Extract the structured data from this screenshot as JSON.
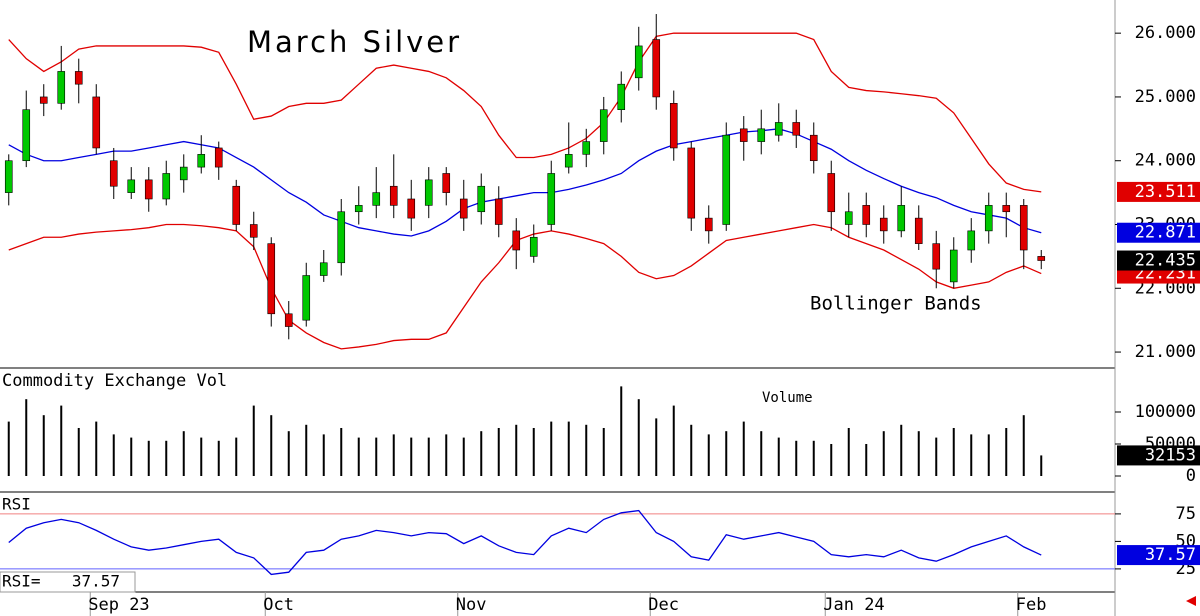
{
  "chart_data": [
    {
      "type": "candlestick",
      "title": "March Silver",
      "annotation": "Bollinger Bands",
      "categories": [
        null,
        null,
        null,
        null,
        null,
        "Sep 23",
        null,
        null,
        null,
        null,
        null,
        null,
        null,
        null,
        null,
        "Oct",
        null,
        null,
        null,
        null,
        null,
        null,
        null,
        null,
        null,
        null,
        "Nov",
        null,
        null,
        null,
        null,
        null,
        null,
        null,
        null,
        null,
        null,
        "Dec",
        null,
        null,
        null,
        null,
        null,
        null,
        null,
        null,
        null,
        "Jan 24",
        null,
        null,
        null,
        null,
        null,
        null,
        null,
        null,
        null,
        null,
        "Feb",
        null
      ],
      "open": [
        23.5,
        24.0,
        25.0,
        24.9,
        25.4,
        25.0,
        24.0,
        23.5,
        23.7,
        23.4,
        23.7,
        23.9,
        24.2,
        23.6,
        23.0,
        22.7,
        21.6,
        21.5,
        22.2,
        22.4,
        23.2,
        23.3,
        23.6,
        23.4,
        23.3,
        23.8,
        23.4,
        23.2,
        23.4,
        22.9,
        22.5,
        23.0,
        23.9,
        24.1,
        24.3,
        24.8,
        25.3,
        25.9,
        24.9,
        24.2,
        23.1,
        23.0,
        24.5,
        24.3,
        24.4,
        24.6,
        24.4,
        23.8,
        23.0,
        23.3,
        23.1,
        22.9,
        23.1,
        22.7,
        22.1,
        22.6,
        22.9,
        23.3,
        23.3,
        22.5
      ],
      "high": [
        24.1,
        25.1,
        25.2,
        25.8,
        25.6,
        25.2,
        24.2,
        23.9,
        23.9,
        24.0,
        24.1,
        24.4,
        24.3,
        23.7,
        23.2,
        22.8,
        21.8,
        22.4,
        22.6,
        23.4,
        23.6,
        23.9,
        24.1,
        23.7,
        23.9,
        23.9,
        23.7,
        23.8,
        23.6,
        23.1,
        23.0,
        24.0,
        24.6,
        24.5,
        25.0,
        25.4,
        26.1,
        26.3,
        25.1,
        24.3,
        23.3,
        24.6,
        24.7,
        24.8,
        24.9,
        24.8,
        24.6,
        24.0,
        23.5,
        23.5,
        23.3,
        23.6,
        23.3,
        22.9,
        22.8,
        23.1,
        23.5,
        23.5,
        23.4,
        22.6
      ],
      "low": [
        23.3,
        23.9,
        24.7,
        24.8,
        24.9,
        24.1,
        23.4,
        23.4,
        23.2,
        23.3,
        23.5,
        23.8,
        23.7,
        22.9,
        22.6,
        21.4,
        21.2,
        21.4,
        22.1,
        22.2,
        23.0,
        23.1,
        23.1,
        22.9,
        23.1,
        23.3,
        22.9,
        23.0,
        22.8,
        22.3,
        22.4,
        22.9,
        23.8,
        23.9,
        24.1,
        24.6,
        25.1,
        24.8,
        24.0,
        22.9,
        22.7,
        22.9,
        24.0,
        24.1,
        24.3,
        24.2,
        23.8,
        22.9,
        22.8,
        22.8,
        22.7,
        22.8,
        22.6,
        22.0,
        22.0,
        22.4,
        22.7,
        22.8,
        22.3,
        22.3
      ],
      "close": [
        24.0,
        24.8,
        24.9,
        25.4,
        25.2,
        24.2,
        23.6,
        23.7,
        23.4,
        23.8,
        23.9,
        24.1,
        23.9,
        23.0,
        22.8,
        21.6,
        21.4,
        22.2,
        22.4,
        23.2,
        23.3,
        23.5,
        23.3,
        23.1,
        23.7,
        23.5,
        23.1,
        23.6,
        23.0,
        22.6,
        22.8,
        23.8,
        24.1,
        24.3,
        24.8,
        25.2,
        25.8,
        25.0,
        24.2,
        23.1,
        22.9,
        24.4,
        24.3,
        24.5,
        24.6,
        24.4,
        24.0,
        23.2,
        23.2,
        23.0,
        22.9,
        23.3,
        22.7,
        22.3,
        22.6,
        22.9,
        23.3,
        23.2,
        22.6,
        22.435
      ],
      "up_color": "#00c800",
      "down_color": "#e00000",
      "last_color": "#000000",
      "series": [
        {
          "color": "#e00000",
          "values": [
            25.9,
            25.6,
            25.4,
            25.55,
            25.75,
            25.8,
            25.8,
            25.8,
            25.8,
            25.8,
            25.8,
            25.78,
            25.7,
            25.2,
            24.65,
            24.7,
            24.85,
            24.9,
            24.9,
            24.95,
            25.2,
            25.45,
            25.5,
            25.45,
            25.4,
            25.3,
            25.1,
            24.85,
            24.4,
            24.05,
            24.05,
            24.1,
            24.2,
            24.35,
            24.6,
            25.0,
            25.55,
            25.95,
            26.0,
            26.0,
            26.0,
            26.0,
            26.0,
            26.0,
            26.0,
            26.0,
            25.9,
            25.4,
            25.15,
            25.1,
            25.08,
            25.05,
            25.02,
            24.98,
            24.75,
            24.35,
            23.95,
            23.65,
            23.55,
            23.511
          ]
        },
        {
          "color": "#0000e0",
          "values": [
            24.25,
            24.1,
            24.0,
            24.0,
            24.05,
            24.1,
            24.15,
            24.15,
            24.2,
            24.25,
            24.3,
            24.25,
            24.2,
            24.05,
            23.9,
            23.7,
            23.5,
            23.35,
            23.15,
            23.05,
            22.95,
            22.9,
            22.85,
            22.82,
            22.9,
            23.05,
            23.25,
            23.35,
            23.4,
            23.45,
            23.5,
            23.5,
            23.55,
            23.62,
            23.7,
            23.8,
            24.0,
            24.15,
            24.25,
            24.3,
            24.35,
            24.4,
            24.45,
            24.47,
            24.5,
            24.42,
            24.3,
            24.18,
            24.0,
            23.85,
            23.72,
            23.6,
            23.5,
            23.42,
            23.3,
            23.2,
            23.15,
            23.1,
            22.95,
            22.871
          ]
        },
        {
          "color": "#e00000",
          "values": [
            22.6,
            22.7,
            22.8,
            22.8,
            22.85,
            22.88,
            22.9,
            22.92,
            22.95,
            23.0,
            23.0,
            22.98,
            22.95,
            22.9,
            22.65,
            22.0,
            21.5,
            21.3,
            21.15,
            21.05,
            21.08,
            21.12,
            21.18,
            21.2,
            21.2,
            21.3,
            21.7,
            22.1,
            22.4,
            22.75,
            22.85,
            22.9,
            22.85,
            22.78,
            22.7,
            22.5,
            22.25,
            22.15,
            22.2,
            22.35,
            22.55,
            22.75,
            22.8,
            22.85,
            22.9,
            22.95,
            23.0,
            22.95,
            22.8,
            22.7,
            22.6,
            22.45,
            22.3,
            22.1,
            22.0,
            22.05,
            22.1,
            22.25,
            22.35,
            22.231
          ]
        }
      ],
      "ylim": [
        20.75,
        26.52
      ],
      "yticks": [
        {
          "value": 21,
          "label": "21.000"
        },
        {
          "value": 22,
          "label": "22.000"
        },
        {
          "value": 23,
          "label": "23.000"
        },
        {
          "value": 24,
          "label": "24.000"
        },
        {
          "value": 25,
          "label": "25.000"
        },
        {
          "value": 26,
          "label": "26.000"
        }
      ]
    },
    {
      "type": "bar",
      "title": "Commodity Exchange Vol",
      "annotation": "Volume",
      "color": "#000000",
      "values": [
        85000,
        120000,
        95000,
        110000,
        75000,
        85000,
        65000,
        60000,
        55000,
        55000,
        70000,
        60000,
        55000,
        60000,
        110000,
        95000,
        70000,
        80000,
        65000,
        75000,
        60000,
        60000,
        65000,
        60000,
        60000,
        65000,
        60000,
        70000,
        75000,
        80000,
        75000,
        85000,
        85000,
        80000,
        75000,
        140000,
        120000,
        90000,
        110000,
        80000,
        65000,
        70000,
        85000,
        70000,
        60000,
        55000,
        55000,
        50000,
        75000,
        50000,
        70000,
        80000,
        70000,
        60000,
        75000,
        65000,
        65000,
        75000,
        95000,
        32153
      ],
      "ylim": [
        -25000,
        165600
      ],
      "yticks": [
        0,
        50000,
        100000
      ]
    },
    {
      "type": "line",
      "title": "RSI",
      "readout_label": "RSI=",
      "color": "#0000e0",
      "values": [
        49,
        62,
        67,
        70,
        67,
        60,
        52,
        45,
        42,
        44,
        47,
        50,
        52,
        40,
        35,
        20,
        22,
        40,
        42,
        52,
        55,
        60,
        58,
        55,
        58,
        57,
        48,
        55,
        46,
        40,
        38,
        55,
        62,
        58,
        70,
        76,
        78,
        58,
        50,
        36,
        33,
        56,
        52,
        55,
        58,
        54,
        50,
        38,
        36,
        38,
        36,
        42,
        35,
        32,
        38,
        45,
        50,
        55,
        45,
        37.57
      ],
      "levels": [
        {
          "value": 75,
          "color": "#f08080"
        },
        {
          "value": 25,
          "color": "#6060ff"
        }
      ],
      "ylim": [
        4,
        94
      ],
      "yticks": [
        25,
        50,
        75
      ]
    }
  ]
}
